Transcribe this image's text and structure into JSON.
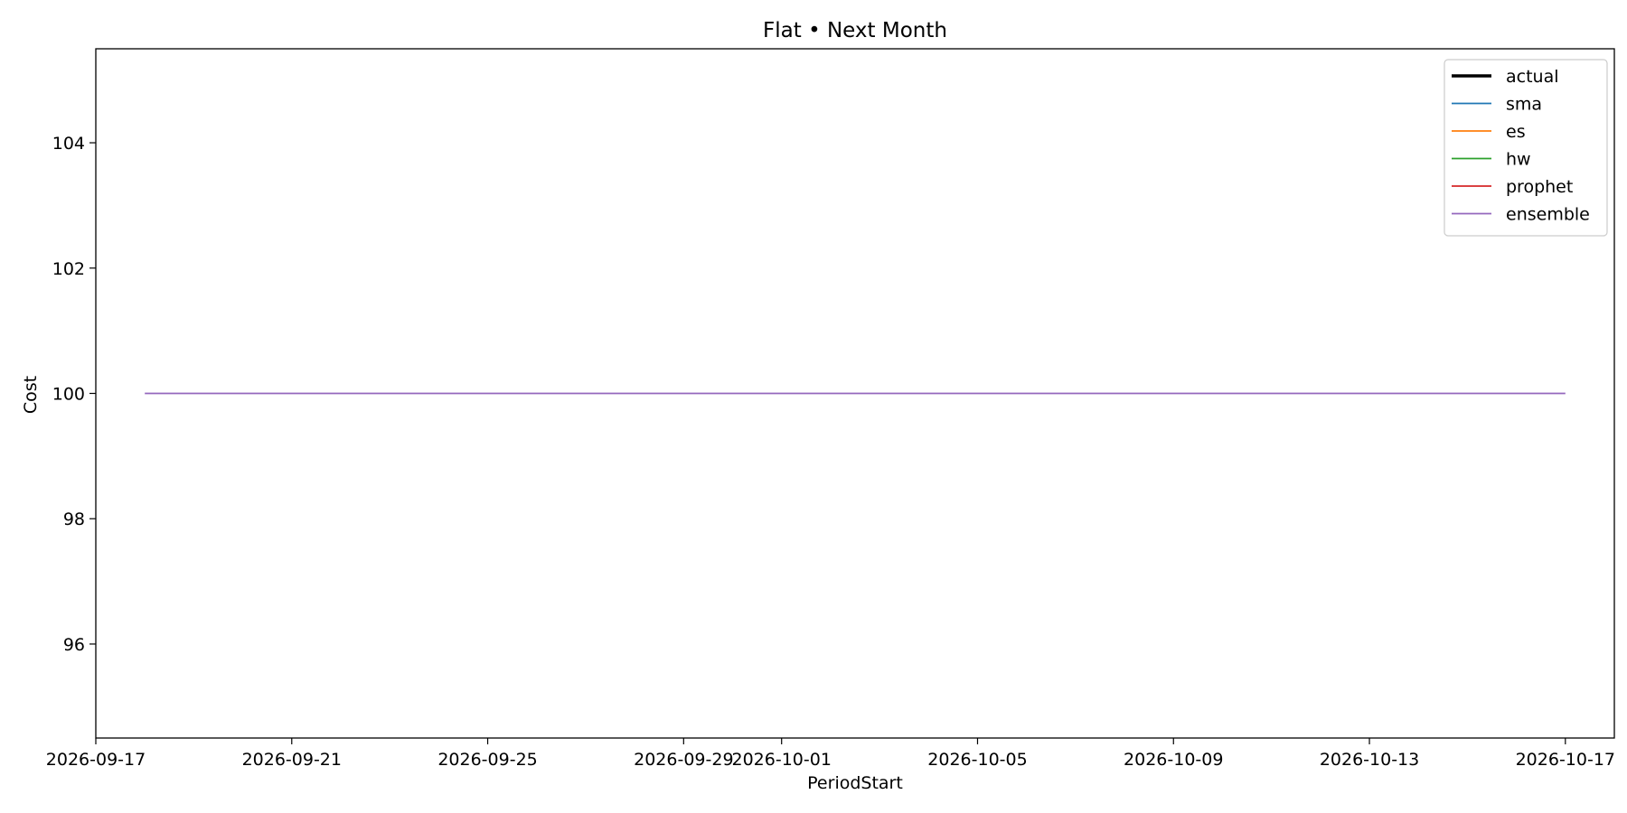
{
  "chart_data": {
    "type": "line",
    "title": "Flat • Next Month",
    "xlabel": "PeriodStart",
    "ylabel": "Cost",
    "x_range": [
      "2026-09-17",
      "2026-10-18"
    ],
    "x_ticks": [
      "2026-09-17",
      "2026-09-21",
      "2026-09-25",
      "2026-09-29",
      "2026-10-01",
      "2026-10-05",
      "2026-10-09",
      "2026-10-13",
      "2026-10-17"
    ],
    "ylim": [
      94.5,
      105.5
    ],
    "y_ticks": [
      96,
      98,
      100,
      102,
      104
    ],
    "grid": false,
    "legend_position": "top-right",
    "series": [
      {
        "name": "actual",
        "color": "#000000",
        "style": "thick",
        "points": []
      },
      {
        "name": "sma",
        "color": "#1f77b4",
        "points": []
      },
      {
        "name": "es",
        "color": "#ff7f0e",
        "points": []
      },
      {
        "name": "hw",
        "color": "#2ca02c",
        "points": []
      },
      {
        "name": "prophet",
        "color": "#d62728",
        "points": []
      },
      {
        "name": "ensemble",
        "color": "#9467bd",
        "points": [
          [
            "2026-09-18",
            100
          ],
          [
            "2026-10-17",
            100
          ]
        ]
      }
    ]
  }
}
